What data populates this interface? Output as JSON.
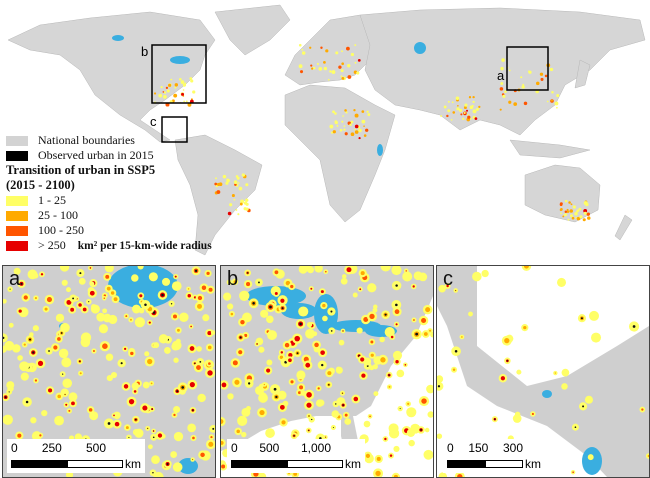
{
  "legend": {
    "items": [
      {
        "label": "National boundaries",
        "color": "#d3d3d3"
      },
      {
        "label": "Observed urban in 2015",
        "color": "#000000"
      }
    ],
    "title_line1": "Transition of urban in SSP5",
    "title_line2": "(2015 - 2100)",
    "classes": [
      {
        "label": "1 - 25",
        "color": "#ffff66"
      },
      {
        "label": "25 - 100",
        "color": "#ffaa00"
      },
      {
        "label": "100 - 250",
        "color": "#ff5500"
      },
      {
        "label": "> 250",
        "color": "#e60000"
      }
    ],
    "unit": "km² per 15-km-wide radius"
  },
  "world_boxes": [
    {
      "label": "a"
    },
    {
      "label": "b"
    },
    {
      "label": "c"
    }
  ],
  "panels": [
    {
      "label": "a",
      "scale_ticks": [
        "0",
        "250",
        "500"
      ],
      "scale_unit": "km"
    },
    {
      "label": "b",
      "scale_ticks": [
        "0",
        "500",
        "1,000"
      ],
      "scale_unit": "km"
    },
    {
      "label": "c",
      "scale_ticks": [
        "0",
        "150",
        "300"
      ],
      "scale_unit": "km"
    }
  ],
  "colors": {
    "land": "#d3d3d3",
    "water": "#3aaee0",
    "ocean": "#ffffff"
  }
}
